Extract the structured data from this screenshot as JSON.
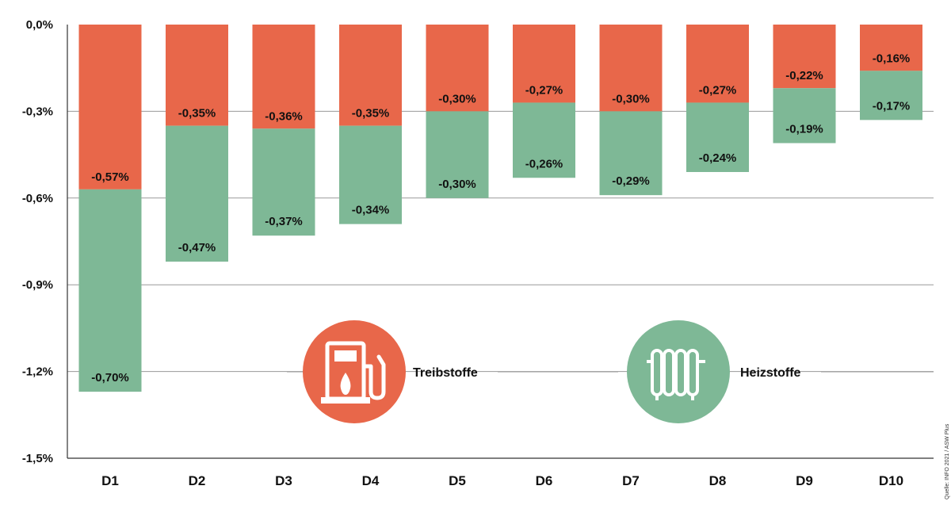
{
  "chart_data": {
    "type": "bar",
    "stacked": true,
    "categories": [
      "D1",
      "D2",
      "D3",
      "D4",
      "D5",
      "D6",
      "D7",
      "D8",
      "D9",
      "D10"
    ],
    "series": [
      {
        "name": "Treibstoffe",
        "color": "#E8674A",
        "icon": "fuel-pump-icon",
        "values": [
          -0.57,
          -0.35,
          -0.36,
          -0.35,
          -0.3,
          -0.27,
          -0.3,
          -0.27,
          -0.22,
          -0.16
        ],
        "labels": [
          "-0,57%",
          "-0,35%",
          "-0,36%",
          "-0,35%",
          "-0,30%",
          "-0,27%",
          "-0,30%",
          "-0,27%",
          "-0,22%",
          "-0,16%"
        ]
      },
      {
        "name": "Heizstoffe",
        "color": "#7EB896",
        "icon": "radiator-icon",
        "values": [
          -0.7,
          -0.47,
          -0.37,
          -0.34,
          -0.3,
          -0.26,
          -0.29,
          -0.24,
          -0.19,
          -0.17
        ],
        "labels": [
          "-0,70%",
          "-0,47%",
          "-0,37%",
          "-0,34%",
          "-0,30%",
          "-0,26%",
          "-0,29%",
          "-0,24%",
          "-0,19%",
          "-0,17%"
        ]
      }
    ],
    "y_ticks": [
      0.0,
      -0.3,
      -0.6,
      -0.9,
      -1.2,
      -1.5
    ],
    "y_tick_labels": [
      "0,0%",
      "-0,3%",
      "-0,6%",
      "-0,9%",
      "-1,2%",
      "-1,5%"
    ],
    "ylim": [
      -1.5,
      0
    ],
    "grid": true,
    "legend_position": "bottom-center",
    "source_note": "Quelle: INFO 2021 / ASW Plus"
  }
}
